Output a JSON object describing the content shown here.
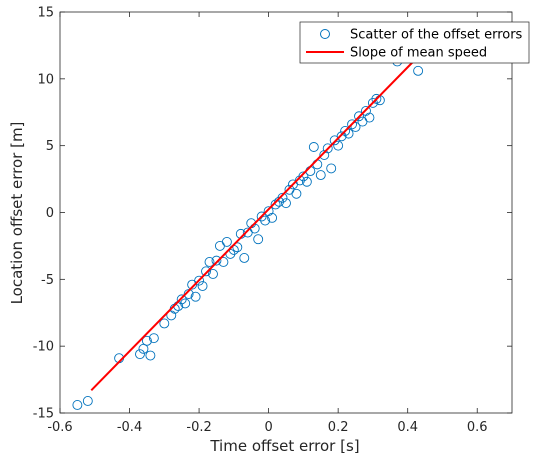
{
  "chart_data": {
    "type": "scatter",
    "xlabel": "Time offset error [s]",
    "ylabel": "Location offset error [m]",
    "xlim": [
      -0.6,
      0.7
    ],
    "ylim": [
      -15,
      15
    ],
    "xticks": [
      -0.6,
      -0.4,
      -0.2,
      0,
      0.2,
      0.4,
      0.6
    ],
    "xtick_labels": [
      "-0.6",
      "-0.4",
      "-0.2",
      "0",
      "0.2",
      "0.4",
      "0.6"
    ],
    "yticks": [
      -15,
      -10,
      -5,
      0,
      5,
      10,
      15
    ],
    "ytick_labels": [
      "-15",
      "-10",
      "-5",
      "0",
      "5",
      "10",
      "15"
    ],
    "grid": false,
    "legend_position": "top-right",
    "series": [
      {
        "name": "Scatter of the offset errors",
        "kind": "scatter",
        "color": "#0072BD",
        "points": [
          [
            -0.55,
            -14.4
          ],
          [
            -0.52,
            -14.1
          ],
          [
            -0.43,
            -10.9
          ],
          [
            -0.37,
            -10.6
          ],
          [
            -0.36,
            -10.2
          ],
          [
            -0.35,
            -9.6
          ],
          [
            -0.34,
            -10.7
          ],
          [
            -0.33,
            -9.4
          ],
          [
            -0.3,
            -8.3
          ],
          [
            -0.28,
            -7.7
          ],
          [
            -0.27,
            -7.2
          ],
          [
            -0.26,
            -7.0
          ],
          [
            -0.25,
            -6.5
          ],
          [
            -0.24,
            -6.8
          ],
          [
            -0.23,
            -6.1
          ],
          [
            -0.22,
            -5.4
          ],
          [
            -0.21,
            -6.3
          ],
          [
            -0.2,
            -5.1
          ],
          [
            -0.19,
            -5.5
          ],
          [
            -0.18,
            -4.4
          ],
          [
            -0.17,
            -3.7
          ],
          [
            -0.16,
            -4.6
          ],
          [
            -0.15,
            -3.6
          ],
          [
            -0.14,
            -2.5
          ],
          [
            -0.13,
            -3.7
          ],
          [
            -0.12,
            -2.2
          ],
          [
            -0.11,
            -3.1
          ],
          [
            -0.1,
            -2.8
          ],
          [
            -0.09,
            -2.6
          ],
          [
            -0.08,
            -1.6
          ],
          [
            -0.07,
            -3.4
          ],
          [
            -0.06,
            -1.5
          ],
          [
            -0.05,
            -0.8
          ],
          [
            -0.04,
            -1.2
          ],
          [
            -0.03,
            -2.0
          ],
          [
            -0.02,
            -0.3
          ],
          [
            -0.01,
            -0.6
          ],
          [
            0.0,
            0.1
          ],
          [
            0.01,
            -0.4
          ],
          [
            0.02,
            0.6
          ],
          [
            0.03,
            0.8
          ],
          [
            0.04,
            1.1
          ],
          [
            0.05,
            0.7
          ],
          [
            0.06,
            1.7
          ],
          [
            0.07,
            2.1
          ],
          [
            0.08,
            1.4
          ],
          [
            0.09,
            2.4
          ],
          [
            0.1,
            2.7
          ],
          [
            0.11,
            2.3
          ],
          [
            0.12,
            3.1
          ],
          [
            0.13,
            4.9
          ],
          [
            0.14,
            3.6
          ],
          [
            0.15,
            2.8
          ],
          [
            0.16,
            4.3
          ],
          [
            0.17,
            4.8
          ],
          [
            0.18,
            3.3
          ],
          [
            0.19,
            5.4
          ],
          [
            0.2,
            5.0
          ],
          [
            0.21,
            5.7
          ],
          [
            0.22,
            6.1
          ],
          [
            0.23,
            5.9
          ],
          [
            0.24,
            6.6
          ],
          [
            0.25,
            6.4
          ],
          [
            0.26,
            7.2
          ],
          [
            0.27,
            6.8
          ],
          [
            0.28,
            7.6
          ],
          [
            0.29,
            7.1
          ],
          [
            0.3,
            8.2
          ],
          [
            0.31,
            8.5
          ],
          [
            0.32,
            8.4
          ],
          [
            0.37,
            11.3
          ],
          [
            0.43,
            10.6
          ]
        ]
      },
      {
        "name": "Slope of mean speed",
        "kind": "line",
        "color": "#FF0000",
        "x": [
          -0.51,
          0.42
        ],
        "y": [
          -13.3,
          11.4
        ]
      }
    ]
  }
}
